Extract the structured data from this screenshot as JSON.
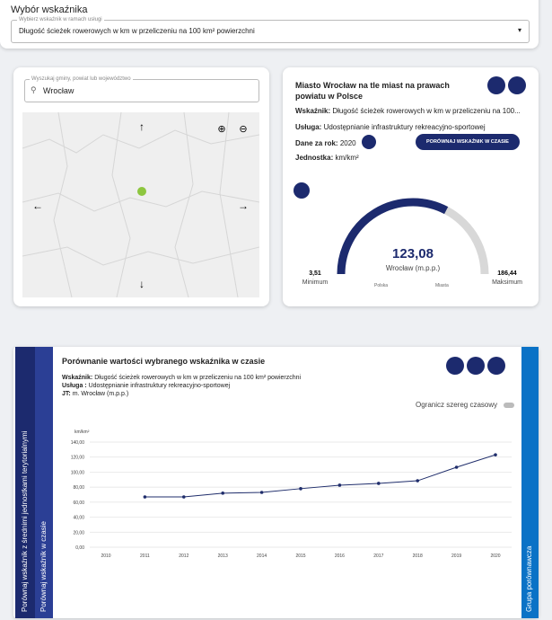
{
  "indicator_panel": {
    "title": "Wybór wskaźnika",
    "select_label": "Wybierz wskaźnik w ramach usługi",
    "select_value": "Długość ścieżek rowerowych w km w przeliczeniu na 100 km² powierzchni"
  },
  "map_panel": {
    "search_label": "Wyszukaj gminy, powiat lub województwo",
    "search_value": "Wrocław"
  },
  "info_panel": {
    "title": "Miasto Wrocław na tle miast na prawach powiatu w Polsce",
    "rows": [
      {
        "label": "Wskaźnik:",
        "value": "Długość ścieżek rowerowych w km w przeliczeniu na 100..."
      },
      {
        "label": "Usługa:",
        "value": "Udostępnianie infrastruktury rekreacyjno-sportowej"
      },
      {
        "label": "Dane za rok:",
        "value": "2020"
      },
      {
        "label": "Jednostka:",
        "value": "km/km²"
      }
    ],
    "button": "PORÓWNAJ WSKAŹNIK W CZASIE",
    "gauge": {
      "value": 123.08,
      "value_label": "123,08",
      "min": 3.51,
      "min_label": "3,51",
      "max": 186.44,
      "max_label": "186,44",
      "caption": "Wrocław (m.p.p.)",
      "min_caption": "Minimum",
      "max_caption": "Maksimum",
      "legend": [
        "Polska",
        "Miasta"
      ]
    }
  },
  "tabs": [
    "Porównaj wskaźnik z średnimi jednostkami terytorialnymi",
    "Porównaj wskaźnik w czasie"
  ],
  "right_tab": "Grupa porównawcza",
  "comparison": {
    "title": "Porównanie wartości wybranego wskaźnika w czasie",
    "details": [
      {
        "label": "Wskaźnik:",
        "value": "Długość ścieżek rowerowych w km w przeliczeniu na 100 km² powierzchni"
      },
      {
        "label": "Usługa :",
        "value": "Udostępnianie infrastruktury rekreacyjno-sportowej"
      },
      {
        "label": "JT:",
        "value": "m. Wrocław (m.p.p.)"
      }
    ],
    "toggle": "Ogranicz szereg czasowy"
  },
  "chart_data": {
    "type": "line",
    "y_label": "km/km²",
    "categories": [
      "2010",
      "2011",
      "2012",
      "2013",
      "2014",
      "2015",
      "2016",
      "2017",
      "2018",
      "2019",
      "2020"
    ],
    "values": [
      null,
      67,
      67,
      72,
      73,
      78,
      82.6,
      85,
      88.5,
      106.5,
      123.08
    ],
    "color": "#1f2d6b",
    "ylim": [
      0,
      140
    ],
    "yticks": [
      {
        "value": 0,
        "label": "0,00"
      },
      {
        "value": 20,
        "label": "20,00"
      },
      {
        "value": 40,
        "label": "40,00"
      },
      {
        "value": 60,
        "label": "60,00"
      },
      {
        "value": 80,
        "label": "80,00"
      },
      {
        "value": 100,
        "label": "100,00"
      },
      {
        "value": 120,
        "label": "120,00"
      },
      {
        "value": 140,
        "label": "140,00"
      }
    ],
    "grid": true
  }
}
